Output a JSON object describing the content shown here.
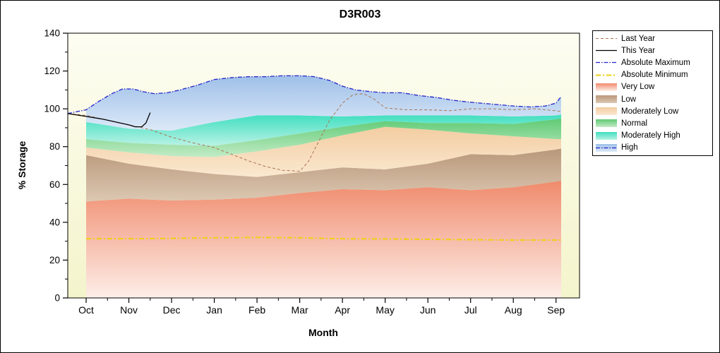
{
  "legend": {
    "items": [
      {
        "label": "Last Year",
        "swatch": "line",
        "color": "#aa7352",
        "dash": "4 3",
        "width": 1
      },
      {
        "label": "This Year",
        "swatch": "line",
        "color": "#000000",
        "dash": "",
        "width": 1.3
      },
      {
        "label": "Absolute Maximum",
        "swatch": "line",
        "color": "#2323cd",
        "dash": "6 2 1.5 2",
        "width": 1.3
      },
      {
        "label": "Absolute Minimum",
        "swatch": "line",
        "color": "#eecf12",
        "dash": "7 3 2 3",
        "width": 2
      },
      {
        "label": "Very Low",
        "swatch": "area",
        "c1": "#f08a6c",
        "c2": "#fdeee8"
      },
      {
        "label": "Low",
        "swatch": "area",
        "c1": "#b9977a",
        "c2": "#dcc8b2"
      },
      {
        "label": "Moderately Low",
        "swatch": "area",
        "c1": "#f3cda2",
        "c2": "#fae8d0"
      },
      {
        "label": "Normal",
        "swatch": "area",
        "c1": "#5fca74",
        "c2": "#c2ebc6"
      },
      {
        "label": "Moderately High",
        "swatch": "area",
        "c1": "#40dfc0",
        "c2": "#b8f2e4"
      },
      {
        "label": "High",
        "swatch": "area+line",
        "c1": "#9fc0e8",
        "c2": "#dce9f8",
        "color": "#2323cd",
        "dash": "6 2 1.5 2",
        "width": 1.3
      }
    ]
  },
  "chart_data": {
    "type": "area",
    "title": "D3R003",
    "xlabel": "Month",
    "ylabel": "% Storage",
    "ylim": [
      0,
      140
    ],
    "x_domain": [
      -0.43,
      11.55
    ],
    "y_major_ticks": [
      0,
      20,
      40,
      60,
      80,
      100,
      120,
      140
    ],
    "x_categories": [
      "Oct",
      "Nov",
      "Dec",
      "Jan",
      "Feb",
      "Mar",
      "Apr",
      "May",
      "Jun",
      "Jul",
      "Aug",
      "Sep"
    ],
    "plot_bg_top": "#fdfdf2",
    "plot_bg_bottom": "#f4f4cc",
    "band_x": [
      0,
      1,
      2,
      3,
      4,
      5,
      6,
      7,
      8,
      9,
      10,
      11,
      11.12
    ],
    "bands": [
      {
        "name": "Very Low",
        "c1": "#f08a6c",
        "c2": "#fdeee8",
        "top": [
          51,
          52.5,
          51.5,
          52,
          53,
          55.5,
          57.5,
          57,
          58.5,
          57,
          58.5,
          61.5,
          62
        ]
      },
      {
        "name": "Low",
        "c1": "#b9977a",
        "c2": "#dcc8b2",
        "top": [
          75.5,
          71,
          68,
          65.5,
          64,
          66.5,
          69,
          68,
          71,
          76,
          75.5,
          78.5,
          79
        ]
      },
      {
        "name": "Moderately Low",
        "c1": "#f3cda2",
        "c2": "#fae8d0",
        "top": [
          79.5,
          77,
          75,
          74.5,
          77.5,
          81,
          86,
          90.5,
          89,
          87,
          85.5,
          84,
          84
        ]
      },
      {
        "name": "Normal",
        "c1": "#5fca74",
        "c2": "#c2ebc6",
        "top": [
          84,
          82,
          81,
          80.5,
          83.5,
          87,
          90.5,
          93.5,
          92.5,
          92.5,
          92,
          94.5,
          95
        ]
      },
      {
        "name": "Moderately High",
        "c1": "#40dfc0",
        "c2": "#b8f2e4",
        "top": [
          93,
          89.5,
          88.5,
          93,
          96.5,
          96.5,
          96,
          96.5,
          96.5,
          96.5,
          96,
          96.5,
          97
        ]
      },
      {
        "name": "High",
        "c1": "#9fc0e8",
        "c2": "#dce9f8",
        "top_x": [
          0,
          0.3,
          0.6,
          0.85,
          1.1,
          1.35,
          1.6,
          1.9,
          2.2,
          2.6,
          3.0,
          3.4,
          3.8,
          4.2,
          4.6,
          5.0,
          5.35,
          5.7,
          6.0,
          6.3,
          6.7,
          7.0,
          7.4,
          7.8,
          8.2,
          8.6,
          9.0,
          9.5,
          10.0,
          10.4,
          10.75,
          11.0,
          11.12
        ],
        "top": [
          99.5,
          104,
          108,
          110.5,
          110.5,
          109,
          108,
          108.5,
          110,
          112.5,
          115.5,
          116.5,
          117,
          117,
          117.5,
          117.5,
          117,
          115,
          112,
          110,
          109,
          108.5,
          108.5,
          107,
          106,
          104.5,
          103.5,
          102.5,
          101.5,
          101,
          101.5,
          103,
          106.5
        ]
      }
    ],
    "lines": [
      {
        "name": "Absolute Minimum",
        "color": "#eecf12",
        "width": 2,
        "dash": "7 3 2 3",
        "x": [
          0,
          1,
          2,
          3,
          4,
          5,
          6,
          7,
          8,
          9,
          10,
          11,
          11.12
        ],
        "y": [
          31.3,
          31.3,
          31.5,
          31.8,
          32,
          31.8,
          31.3,
          31.2,
          31,
          30.8,
          30.6,
          30.6,
          30.6
        ]
      },
      {
        "name": "Last Year",
        "color": "#aa7352",
        "width": 1,
        "dash": "4 3",
        "x": [
          -0.43,
          0,
          0.5,
          1,
          1.5,
          2,
          2.5,
          3,
          3.4,
          3.8,
          4.2,
          4.6,
          5.0,
          5.2,
          5.45,
          5.7,
          6.0,
          6.25,
          6.5,
          6.75,
          7.0,
          7.5,
          8.0,
          8.5,
          9.0,
          9.5,
          10.0,
          10.5,
          11.0,
          11.12
        ],
        "y": [
          97.5,
          96.5,
          94,
          91.5,
          89,
          85,
          82,
          79.5,
          76,
          72.5,
          69.5,
          67.5,
          67,
          72,
          83,
          94,
          103,
          107.5,
          108,
          105,
          100.5,
          99.5,
          99.5,
          99,
          100,
          100,
          99.5,
          100,
          99,
          98.5
        ]
      },
      {
        "name": "Absolute Maximum",
        "color": "#2323cd",
        "width": 1.3,
        "dash": "6 2 1.5 2",
        "x": [
          -0.43,
          0,
          0.3,
          0.6,
          0.85,
          1.1,
          1.35,
          1.6,
          1.9,
          2.2,
          2.6,
          3.0,
          3.4,
          3.8,
          4.2,
          4.6,
          5.0,
          5.35,
          5.7,
          6.0,
          6.3,
          6.7,
          7.0,
          7.4,
          7.8,
          8.2,
          8.6,
          9.0,
          9.5,
          10.0,
          10.4,
          10.75,
          11.0,
          11.12
        ],
        "y": [
          97.5,
          99.5,
          104,
          108,
          110.5,
          110.5,
          109,
          108,
          108.5,
          110,
          112.5,
          115.5,
          116.5,
          117,
          117,
          117.5,
          117.5,
          117,
          115,
          112,
          110,
          109,
          108.5,
          108.5,
          107,
          106,
          104.5,
          103.5,
          102.5,
          101.5,
          101,
          101.5,
          103,
          106.5
        ]
      },
      {
        "name": "This Year",
        "color": "#000000",
        "width": 1.3,
        "dash": "",
        "x": [
          -0.43,
          0,
          0.4,
          0.8,
          1.0,
          1.15,
          1.3,
          1.4,
          1.5
        ],
        "y": [
          97.5,
          96,
          94.5,
          92.5,
          91.5,
          90.5,
          90.5,
          92.5,
          98
        ]
      }
    ]
  }
}
